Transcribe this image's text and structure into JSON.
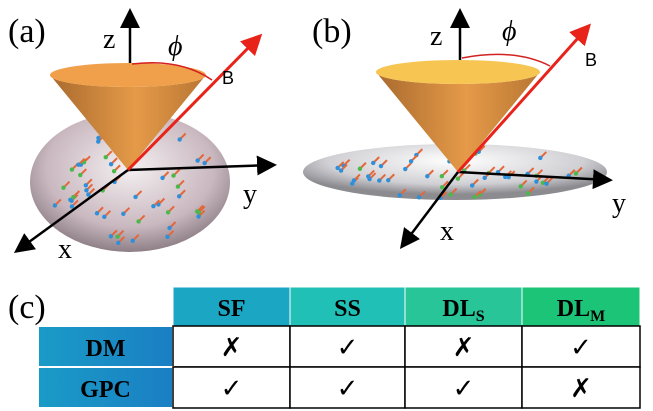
{
  "panels": [
    {
      "label": "(a)",
      "z": "z",
      "y": "y",
      "x": "x",
      "angle": "ϕ",
      "field": "B"
    },
    {
      "label": "(b)",
      "z": "z",
      "y": "y",
      "x": "x",
      "angle": "ϕ",
      "field": "B"
    }
  ],
  "table": {
    "label": "(c)",
    "header": [
      {
        "text": "SF"
      },
      {
        "text": "SS"
      },
      {
        "text": "DL",
        "sub": "S"
      },
      {
        "text": "DL",
        "sub": "M"
      }
    ],
    "rows": [
      {
        "label": "DM",
        "cells": [
          "✗",
          "✓",
          "✗",
          "✓"
        ]
      },
      {
        "label": "GPC",
        "cells": [
          "✓",
          "✓",
          "✓",
          "✗"
        ]
      }
    ]
  }
}
